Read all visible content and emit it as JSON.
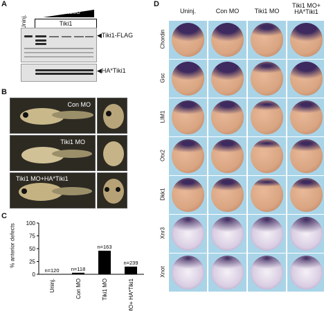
{
  "panels": {
    "a": "A",
    "b": "B",
    "c": "C",
    "d": "D"
  },
  "panel_a": {
    "uninj_label": "Uninj.",
    "gradient_label": "Tiki1MO",
    "tiki1_box_label": "Tiki1",
    "band1_label": "◀Tiki1-FLAG",
    "band2_label": "◀HA*Tiki1"
  },
  "panel_b": {
    "photo_labels": [
      "Con MO",
      "Tiki1 MO",
      "Tiki1 MO+HA*Tiki1"
    ]
  },
  "chart_data": {
    "type": "bar",
    "categories": [
      "Uninj.",
      "Con MO",
      "Tiki1 MO",
      "Tiki1 MO+ HA*Tiki1"
    ],
    "values": [
      0,
      3,
      46,
      15
    ],
    "n_labels": [
      "n=120",
      "n=118",
      "n=163",
      "n=239"
    ],
    "ylabel": "% anterior defects",
    "yticks": [
      "0",
      "25",
      "50",
      "75",
      "100"
    ],
    "ylim": [
      0,
      100
    ]
  },
  "panel_d": {
    "columns": [
      "Uninj.",
      "Con MO",
      "Tiki1 MO",
      "Tiki1 MO+ HA*Tiki1"
    ],
    "rows": [
      "Chordin",
      "Gsc",
      "LIM1",
      "Otx2",
      "Dkk1",
      "Xnr3",
      "Xnot"
    ]
  },
  "colors": {
    "panel_bg": "#a9d4e8",
    "embryo_tan": "#d9a582",
    "stain_purple": "#3e2a5e",
    "bar": "#000000"
  }
}
